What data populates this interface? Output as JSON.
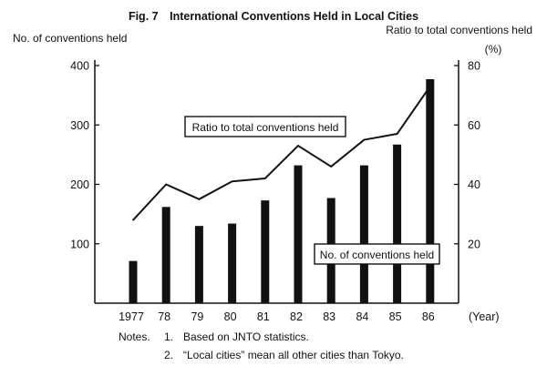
{
  "chart_data": {
    "type": "bar",
    "title": "Fig. 7 International Conventions Held in Local Cities",
    "categories": [
      "1977",
      "78",
      "79",
      "80",
      "81",
      "82",
      "83",
      "84",
      "85",
      "86"
    ],
    "xlabel": "(Year)",
    "ylabel": "No. of conventions held",
    "y2label": "Ratio to total conventions held",
    "y2unit": "(%)",
    "ylim": [
      0,
      400
    ],
    "yticks": [
      100,
      200,
      300,
      400
    ],
    "y2lim": [
      0,
      80
    ],
    "y2ticks": [
      20,
      40,
      60,
      80
    ],
    "grid": false,
    "series": [
      {
        "name": "No. of conventions held",
        "type": "bar",
        "axis": "left",
        "values": [
          71,
          162,
          130,
          134,
          173,
          232,
          177,
          232,
          267,
          377
        ]
      },
      {
        "name": "Ratio to total conventions held",
        "type": "line",
        "axis": "right",
        "values": [
          28,
          40,
          35,
          41,
          42,
          53,
          46,
          55,
          57,
          73
        ]
      }
    ],
    "annotations": [
      {
        "label": "Ratio to total conventions held"
      },
      {
        "label": "No. of conventions held"
      }
    ],
    "notes": {
      "heading": "Notes.",
      "items": [
        {
          "num": "1.",
          "text": "Based on JNTO statistics."
        },
        {
          "num": "2.",
          "text": "“Local cities” mean all other cities than Tokyo."
        }
      ]
    }
  }
}
